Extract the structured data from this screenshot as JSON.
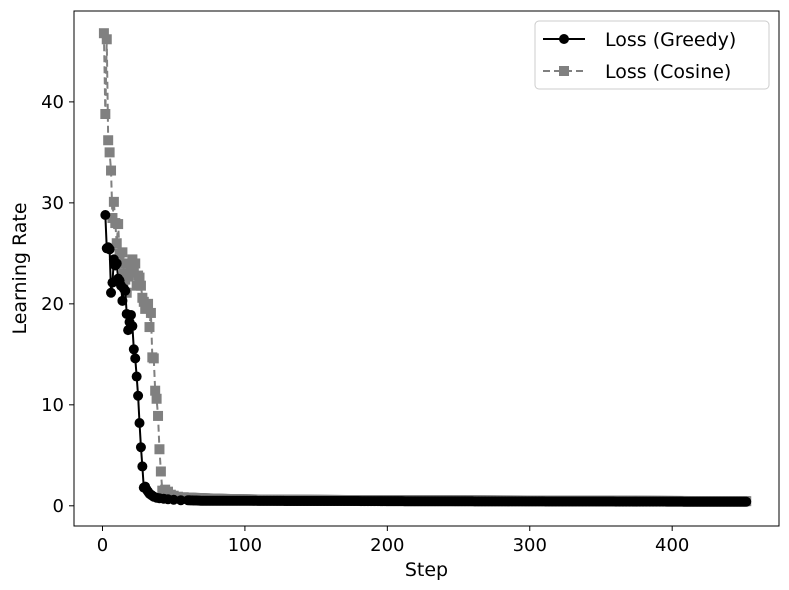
{
  "chart_data": {
    "type": "line",
    "title": "",
    "xlabel": "Step",
    "ylabel": "Learning Rate",
    "xlim": [
      -20,
      475
    ],
    "ylim": [
      -2,
      49
    ],
    "xticks": [
      0,
      100,
      200,
      300,
      400
    ],
    "yticks": [
      0,
      10,
      20,
      30,
      40
    ],
    "grid": false,
    "legend_position": "top-right",
    "series": [
      {
        "name": "Loss (Greedy)",
        "color": "#000000",
        "line_style": "solid",
        "marker": "circle",
        "points": [
          [
            2,
            28.8
          ],
          [
            3,
            25.5
          ],
          [
            4,
            25.6
          ],
          [
            5,
            25.4
          ],
          [
            6,
            21.1
          ],
          [
            7,
            22.1
          ],
          [
            8,
            24.4
          ],
          [
            9,
            23.8
          ],
          [
            10,
            24.0
          ],
          [
            11,
            22.5
          ],
          [
            12,
            22.3
          ],
          [
            13,
            21.8
          ],
          [
            14,
            20.3
          ],
          [
            15,
            21.5
          ],
          [
            16,
            21.3
          ],
          [
            17,
            19.0
          ],
          [
            18,
            17.4
          ],
          [
            19,
            18.2
          ],
          [
            20,
            18.9
          ],
          [
            21,
            17.8
          ],
          [
            22,
            15.5
          ],
          [
            23,
            14.6
          ],
          [
            24,
            12.8
          ],
          [
            25,
            10.9
          ],
          [
            26,
            8.2
          ],
          [
            27,
            5.8
          ],
          [
            28,
            3.9
          ],
          [
            29,
            1.8
          ],
          [
            30,
            1.9
          ],
          [
            31,
            1.6
          ],
          [
            32,
            1.4
          ],
          [
            33,
            1.2
          ],
          [
            34,
            1.1
          ],
          [
            35,
            1.0
          ],
          [
            36,
            0.9
          ],
          [
            38,
            0.8
          ],
          [
            40,
            0.75
          ],
          [
            43,
            0.7
          ],
          [
            46,
            0.65
          ],
          [
            50,
            0.6
          ],
          [
            55,
            0.55
          ],
          [
            60,
            0.55
          ],
          [
            70,
            0.5
          ],
          [
            80,
            0.5
          ],
          [
            100,
            0.5
          ],
          [
            130,
            0.48
          ],
          [
            160,
            0.48
          ],
          [
            200,
            0.46
          ],
          [
            240,
            0.45
          ],
          [
            280,
            0.44
          ],
          [
            320,
            0.43
          ],
          [
            360,
            0.42
          ],
          [
            400,
            0.41
          ],
          [
            430,
            0.4
          ],
          [
            452,
            0.4
          ]
        ]
      },
      {
        "name": "Loss (Cosine)",
        "color": "#808080",
        "line_style": "dashed",
        "marker": "square",
        "points": [
          [
            1,
            46.8
          ],
          [
            2,
            38.8
          ],
          [
            3,
            46.2
          ],
          [
            4,
            36.2
          ],
          [
            5,
            35.0
          ],
          [
            6,
            33.2
          ],
          [
            7,
            28.5
          ],
          [
            8,
            30.1
          ],
          [
            9,
            28.0
          ],
          [
            10,
            26.0
          ],
          [
            11,
            27.9
          ],
          [
            12,
            25.0
          ],
          [
            13,
            24.0
          ],
          [
            14,
            25.1
          ],
          [
            15,
            23.0
          ],
          [
            16,
            22.4
          ],
          [
            17,
            21.1
          ],
          [
            18,
            22.7
          ],
          [
            19,
            24.0
          ],
          [
            20,
            23.5
          ],
          [
            21,
            24.4
          ],
          [
            22,
            23.1
          ],
          [
            23,
            24.0
          ],
          [
            24,
            21.8
          ],
          [
            25,
            22.8
          ],
          [
            26,
            22.6
          ],
          [
            27,
            21.8
          ],
          [
            28,
            20.6
          ],
          [
            29,
            20.2
          ],
          [
            30,
            19.5
          ],
          [
            31,
            19.7
          ],
          [
            32,
            20.0
          ],
          [
            33,
            17.7
          ],
          [
            34,
            19.1
          ],
          [
            35,
            14.7
          ],
          [
            36,
            14.6
          ],
          [
            37,
            11.4
          ],
          [
            38,
            10.6
          ],
          [
            39,
            8.9
          ],
          [
            40,
            5.6
          ],
          [
            41,
            3.4
          ],
          [
            42,
            1.5
          ],
          [
            43,
            1.3
          ],
          [
            44,
            1.6
          ],
          [
            45,
            1.2
          ],
          [
            46,
            1.4
          ],
          [
            48,
            1.1
          ],
          [
            50,
            1.0
          ],
          [
            53,
            0.9
          ],
          [
            57,
            0.85
          ],
          [
            62,
            0.8
          ],
          [
            70,
            0.75
          ],
          [
            80,
            0.7
          ],
          [
            95,
            0.65
          ],
          [
            110,
            0.62
          ],
          [
            130,
            0.6
          ],
          [
            160,
            0.58
          ],
          [
            200,
            0.56
          ],
          [
            240,
            0.55
          ],
          [
            280,
            0.53
          ],
          [
            320,
            0.52
          ],
          [
            360,
            0.5
          ],
          [
            400,
            0.48
          ],
          [
            430,
            0.47
          ],
          [
            452,
            0.46
          ]
        ]
      }
    ]
  }
}
